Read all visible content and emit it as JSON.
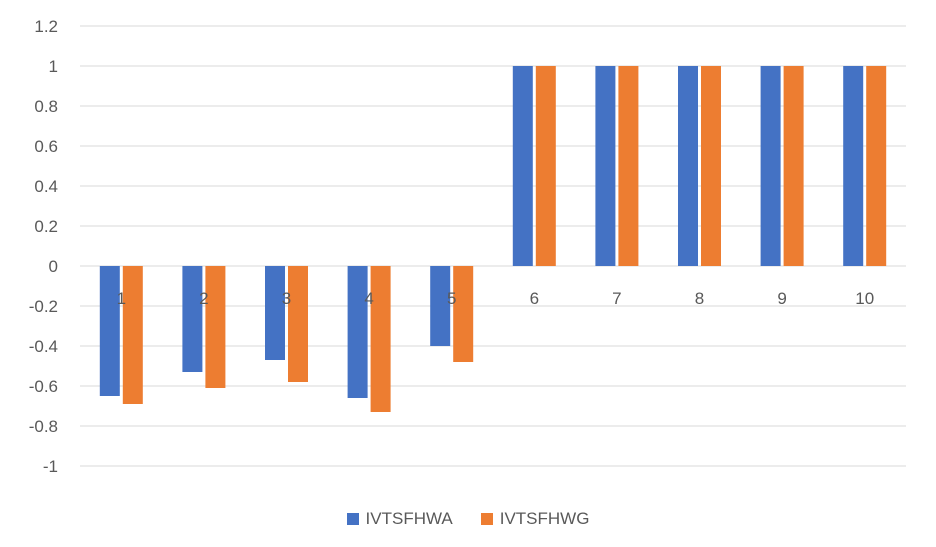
{
  "chart_data": {
    "type": "bar",
    "title": "",
    "xlabel": "",
    "ylabel": "",
    "categories": [
      "1",
      "2",
      "3",
      "4",
      "5",
      "6",
      "7",
      "8",
      "9",
      "10"
    ],
    "series": [
      {
        "name": "IVTSFHWA",
        "color": "#4472C4",
        "values": [
          -0.65,
          -0.53,
          -0.47,
          -0.66,
          -0.4,
          1,
          1,
          1,
          1,
          1
        ]
      },
      {
        "name": "IVTSFHWG",
        "color": "#ED7D31",
        "values": [
          -0.69,
          -0.61,
          -0.58,
          -0.73,
          -0.48,
          1,
          1,
          1,
          1,
          1
        ]
      }
    ],
    "ylim": [
      -1,
      1.2
    ],
    "yticks": [
      "1.2",
      "1",
      "0.8",
      "0.6",
      "0.4",
      "0.2",
      "0",
      "-0.2",
      "-0.4",
      "-0.6",
      "-0.8",
      "-1"
    ],
    "grid": true,
    "legend_position": "bottom"
  }
}
